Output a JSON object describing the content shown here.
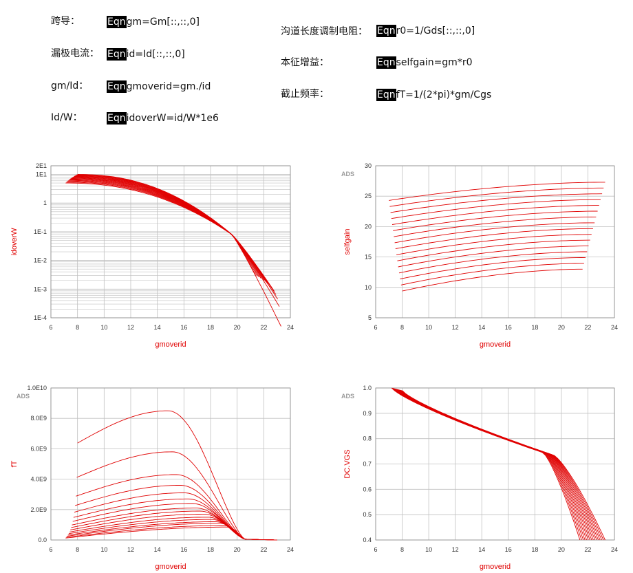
{
  "equations": [
    {
      "label": "跨导：",
      "tag": "Eqn",
      "expr": "gm=Gm[::,::,0]"
    },
    {
      "label": "漏极电流：",
      "tag": "Eqn",
      "expr": "id=Id[::,::,0]"
    },
    {
      "label": "gm/Id：",
      "tag": "Eqn",
      "expr": "gmoverid=gm./id"
    },
    {
      "label": "Id/W：",
      "tag": "Eqn",
      "expr": "idoverW=id/W*1e6"
    },
    {
      "label": "沟道长度调制电阻：",
      "tag": "Eqn",
      "expr": "r0=1/Gds[::,::,0]"
    },
    {
      "label": "本征增益：",
      "tag": "Eqn",
      "expr": "selfgain=gm*r0"
    },
    {
      "label": "截止频率：",
      "tag": "Eqn",
      "expr": "fT=1/(2*pi)*gm/Cgs"
    }
  ],
  "colors": {
    "curve": "#e00000",
    "grid": "#c0c0c0",
    "axis_label": "#e00000"
  },
  "chart_data": [
    {
      "type": "line",
      "name": "idoverW",
      "xlabel": "gmoverid",
      "ylabel": "idoverW",
      "xlim": [
        6,
        24
      ],
      "ylim": [
        0.0001,
        20
      ],
      "yscale": "log",
      "xticks": [
        "6",
        "8",
        "10",
        "12",
        "14",
        "16",
        "18",
        "20",
        "22",
        "24"
      ],
      "yticks": [
        "2E1",
        "1E1",
        "1",
        "1E-1",
        "1E-2",
        "1E-3",
        "1E-4"
      ],
      "ads_badge": "",
      "series_note": "about 16 curves",
      "x_start": [
        8.0,
        7.1
      ],
      "x_end": [
        21.4,
        23.3
      ],
      "y_start": [
        10.0,
        5.0
      ],
      "y_cross": [
        19.6,
        0.08
      ],
      "y_end": [
        0.003,
        5e-05
      ]
    },
    {
      "type": "line",
      "name": "selfgain",
      "xlabel": "gmoverid",
      "ylabel": "selfgain",
      "xlim": [
        6,
        24
      ],
      "ylim": [
        5,
        30
      ],
      "xticks": [
        "6",
        "8",
        "10",
        "12",
        "14",
        "16",
        "18",
        "20",
        "22",
        "24"
      ],
      "yticks": [
        "30",
        "25",
        "20",
        "15",
        "10",
        "5"
      ],
      "ads_badge": "ADS",
      "x_start": [
        8.0,
        7.0
      ],
      "x_end": [
        21.6,
        23.3
      ],
      "y_start": [
        9.4,
        24.3
      ],
      "y_end": [
        13.0,
        27.3
      ]
    },
    {
      "type": "line",
      "name": "fT",
      "xlabel": "gmoverid",
      "ylabel": "fT",
      "xlim": [
        6,
        24
      ],
      "ylim": [
        0,
        10000000000
      ],
      "xticks": [
        "6",
        "8",
        "10",
        "12",
        "14",
        "16",
        "18",
        "20",
        "22",
        "24"
      ],
      "yticks": [
        "1.0E10",
        "8.0E9",
        "6.0E9",
        "4.0E9",
        "2.0E9",
        "0.0"
      ],
      "ads_badge": "ADS",
      "peaks": [
        8500000000.0,
        5800000000.0,
        4300000000.0,
        3600000000.0,
        3100000000.0,
        2700000000.0,
        2400000000.0,
        2100000000.0,
        1900000000.0,
        1700000000.0,
        1500000000.0,
        1350000000.0,
        1200000000.0,
        1100000000.0,
        950000000.0,
        850000000.0
      ]
    },
    {
      "type": "line",
      "name": "DC.VGS",
      "xlabel": "gmoverid",
      "ylabel": "DC.VGS",
      "xlim": [
        6,
        24
      ],
      "ylim": [
        0.4,
        1.0
      ],
      "xticks": [
        "6",
        "8",
        "10",
        "12",
        "14",
        "16",
        "18",
        "20",
        "22",
        "24"
      ],
      "yticks": [
        "1.0",
        "0.9",
        "0.8",
        "0.7",
        "0.6",
        "0.5",
        "0.4"
      ],
      "ads_badge": "ADS",
      "x_start": [
        7.2,
        8.0
      ],
      "x_end": [
        21.4,
        23.3
      ]
    }
  ]
}
